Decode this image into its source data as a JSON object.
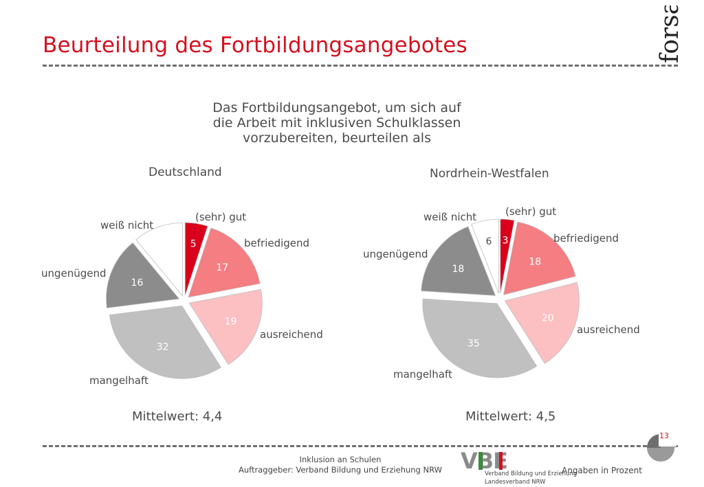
{
  "title": "Beurteilung des Fortbildungsangebotes",
  "brand": "forsa.",
  "question_lines": [
    "Das Fortbildungsangebot, um sich auf",
    "die Arbeit mit inklusiven Schulklassen",
    "vorzubereiten, beurteilen als"
  ],
  "chart_data": [
    {
      "type": "pie",
      "title": "Deutschland",
      "categories": [
        "(sehr) gut",
        "befriedigend",
        "ausreichend",
        "mangelhaft",
        "ungenügend",
        "weiß nicht"
      ],
      "values": [
        5,
        17,
        19,
        32,
        16,
        11
      ],
      "value_labels": [
        "5",
        "17",
        "19",
        "32",
        "16",
        ""
      ],
      "colors": [
        "#d9001b",
        "#f47e81",
        "#fcc0c2",
        "#c0c0c0",
        "#8c8c8c",
        "#ffffff"
      ],
      "annotation": "Mittelwert: 4,4"
    },
    {
      "type": "pie",
      "title": "Nordrhein-Westfalen",
      "categories": [
        "(sehr) gut",
        "befriedigend",
        "ausreichend",
        "mangelhaft",
        "ungenügend",
        "weiß nicht"
      ],
      "values": [
        3,
        18,
        20,
        35,
        18,
        6
      ],
      "value_labels": [
        "3",
        "18",
        "20",
        "35",
        "18",
        "6"
      ],
      "colors": [
        "#d9001b",
        "#f47e81",
        "#fcc0c2",
        "#c0c0c0",
        "#8c8c8c",
        "#ffffff"
      ],
      "annotation": "Mittelwert: 4,5"
    }
  ],
  "footer": {
    "line1": "Inklusion an Schulen",
    "line2": "Auftraggeber: Verband Bildung und Erziehung NRW",
    "logo_text": "VBE",
    "logo_sub1": "Verband Bildung und Erziehung",
    "logo_sub2": "Landesverband NRW",
    "unit_note": "Angaben in Prozent",
    "page_number": "13"
  }
}
